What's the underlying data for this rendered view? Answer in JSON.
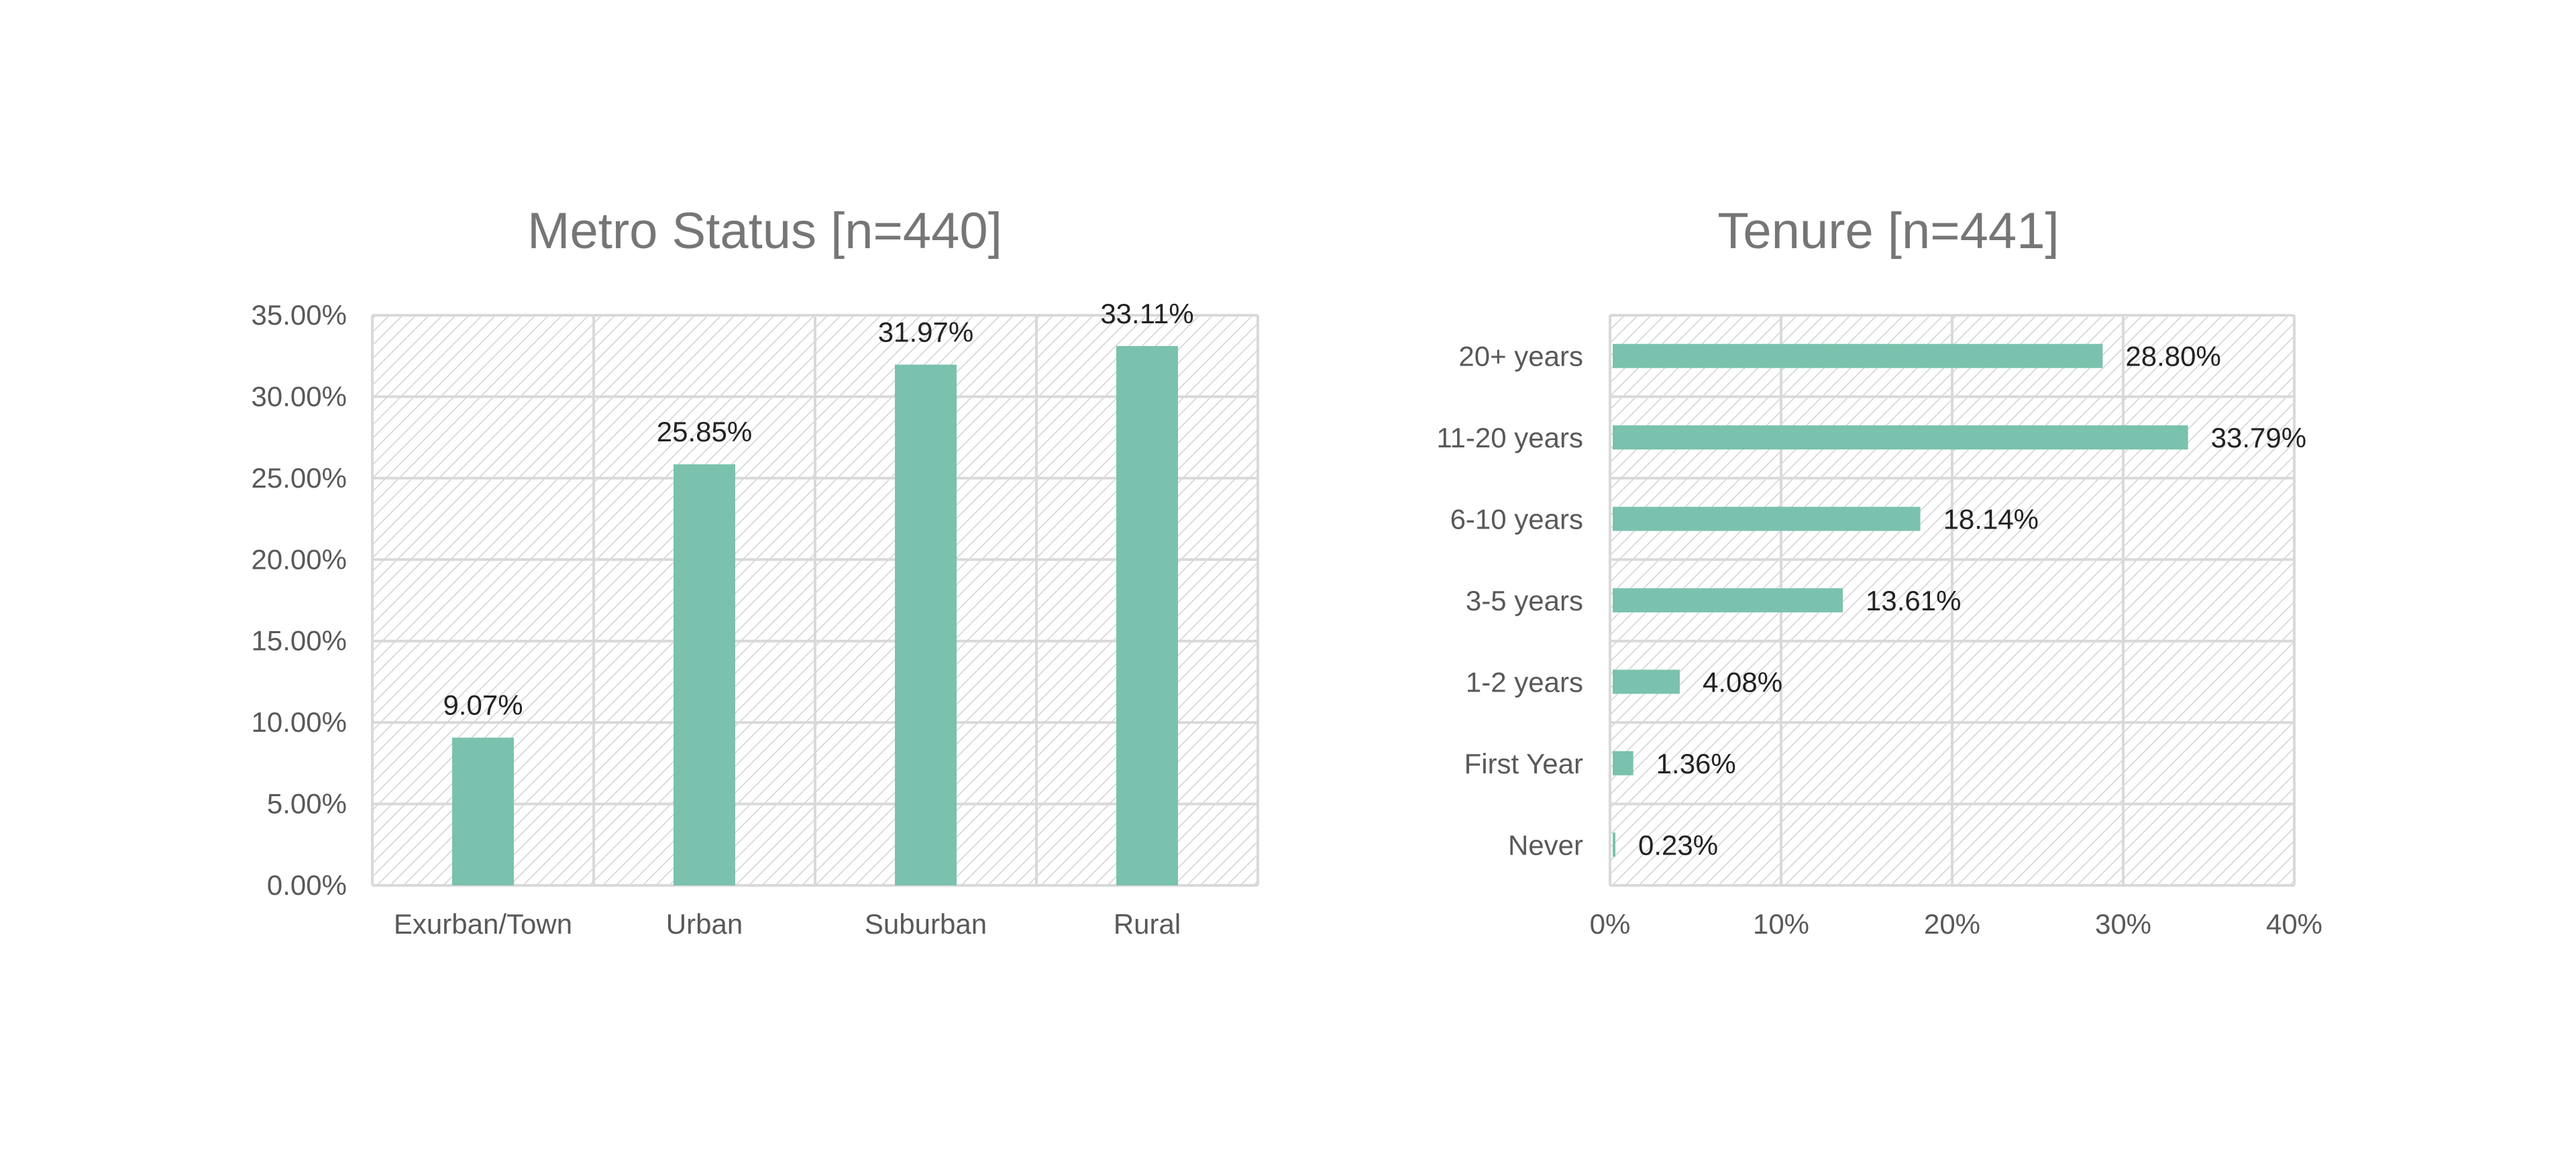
{
  "chart_data": [
    {
      "type": "bar",
      "orientation": "vertical",
      "title": "Metro Status [n=440]",
      "xlabel": "",
      "ylabel": "",
      "categories": [
        "Exurban/Town",
        "Urban",
        "Suburban",
        "Rural"
      ],
      "values": [
        9.07,
        25.85,
        31.97,
        33.11
      ],
      "data_labels": [
        "9.07%",
        "25.85%",
        "31.97%",
        "33.11%"
      ],
      "ylim": [
        0,
        35
      ],
      "y_ticks": [
        "0.00%",
        "5.00%",
        "10.00%",
        "15.00%",
        "20.00%",
        "25.00%",
        "30.00%",
        "35.00%"
      ],
      "grid": true,
      "legend": "none"
    },
    {
      "type": "bar",
      "orientation": "horizontal",
      "title": "Tenure [n=441]",
      "xlabel": "",
      "ylabel": "",
      "categories": [
        "20+ years",
        "11-20 years",
        "6-10 years",
        "3-5 years",
        "1-2 years",
        "First Year",
        "Never"
      ],
      "values": [
        28.8,
        33.79,
        18.14,
        13.61,
        4.08,
        1.36,
        0.23
      ],
      "data_labels": [
        "28.80%",
        "33.79%",
        "18.14%",
        "13.61%",
        "4.08%",
        "1.36%",
        "0.23%"
      ],
      "xlim": [
        0,
        40
      ],
      "x_ticks": [
        "0%",
        "10%",
        "20%",
        "30%",
        "40%"
      ],
      "grid": true,
      "legend": "none"
    }
  ],
  "colors": {
    "bar": "#7ac2ad",
    "grid": "#d9d9d9",
    "title": "#767676",
    "tick": "#595959",
    "label": "#222222"
  }
}
